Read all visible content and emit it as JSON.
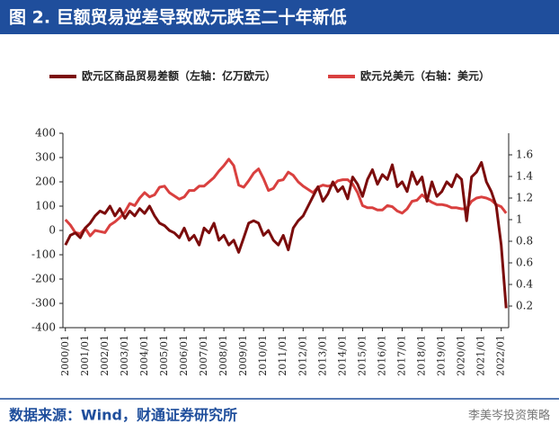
{
  "chart_data": {
    "type": "line",
    "title": "图 2. 巨额贸易逆差导致欧元跌至二十年新低",
    "source": "数据来源：Wind，财通证券研究所",
    "watermark": "李美岑投资策略",
    "categories": [
      "2000/01",
      null,
      null,
      null,
      "2001/01",
      null,
      null,
      null,
      "2002/01",
      null,
      null,
      null,
      "2003/01",
      null,
      null,
      null,
      "2004/01",
      null,
      null,
      null,
      "2005/01",
      null,
      null,
      null,
      "2006/01",
      null,
      null,
      null,
      "2007/01",
      null,
      null,
      null,
      "2008/01",
      null,
      null,
      null,
      "2009/01",
      null,
      null,
      null,
      "2010/01",
      null,
      null,
      null,
      "2011/01",
      null,
      null,
      null,
      "2012/01",
      null,
      null,
      null,
      "2013/01",
      null,
      null,
      null,
      "2014/01",
      null,
      null,
      null,
      "2015/01",
      null,
      null,
      null,
      "2016/01",
      null,
      null,
      null,
      "2017/01",
      null,
      null,
      null,
      "2018/01",
      null,
      null,
      null,
      "2019/01",
      null,
      null,
      null,
      "2020/01",
      null,
      null,
      null,
      "2021/01",
      null,
      null,
      null,
      "2022/01",
      null
    ],
    "series": [
      {
        "name": "欧元区商品贸易差额（左轴：亿万欧元）",
        "color": "#7b0c0c",
        "values": [
          -60,
          -20,
          -10,
          -30,
          10,
          30,
          60,
          80,
          70,
          100,
          60,
          90,
          50,
          80,
          60,
          90,
          70,
          100,
          60,
          30,
          20,
          0,
          -10,
          -30,
          10,
          -40,
          -20,
          -60,
          10,
          -10,
          30,
          -40,
          -20,
          -60,
          -40,
          -90,
          -30,
          30,
          40,
          30,
          -20,
          0,
          -40,
          -60,
          -20,
          -80,
          10,
          40,
          60,
          100,
          140,
          180,
          120,
          150,
          200,
          160,
          180,
          130,
          220,
          190,
          140,
          210,
          250,
          190,
          230,
          210,
          270,
          180,
          200,
          160,
          240,
          190,
          220,
          120,
          200,
          140,
          160,
          200,
          180,
          230,
          210,
          40,
          220,
          240,
          280,
          200,
          160,
          100,
          -60,
          -320
        ]
      },
      {
        "name": "欧元兑美元（右轴：美元）",
        "color": "#d9403f",
        "axis": "y2",
        "values": [
          1.0,
          0.95,
          0.88,
          0.87,
          0.92,
          0.85,
          0.9,
          0.89,
          0.88,
          0.95,
          0.98,
          1.02,
          1.07,
          1.15,
          1.13,
          1.2,
          1.25,
          1.21,
          1.23,
          1.3,
          1.31,
          1.25,
          1.22,
          1.19,
          1.21,
          1.27,
          1.27,
          1.31,
          1.31,
          1.35,
          1.39,
          1.45,
          1.5,
          1.56,
          1.5,
          1.32,
          1.3,
          1.36,
          1.43,
          1.47,
          1.38,
          1.27,
          1.29,
          1.36,
          1.37,
          1.44,
          1.41,
          1.35,
          1.31,
          1.28,
          1.25,
          1.3,
          1.32,
          1.31,
          1.32,
          1.36,
          1.37,
          1.37,
          1.33,
          1.25,
          1.13,
          1.11,
          1.11,
          1.09,
          1.09,
          1.13,
          1.12,
          1.08,
          1.06,
          1.1,
          1.17,
          1.18,
          1.23,
          1.19,
          1.16,
          1.14,
          1.14,
          1.13,
          1.11,
          1.11,
          1.1,
          1.1,
          1.17,
          1.2,
          1.21,
          1.2,
          1.18,
          1.14,
          1.12,
          1.06
        ]
      }
    ],
    "ylim": [
      -400,
      400
    ],
    "yticks": [
      -400,
      -300,
      -200,
      -100,
      0,
      100,
      200,
      300,
      400
    ],
    "y2lim": [
      0,
      1.8
    ],
    "y2ticks": [
      0.2,
      0.4,
      0.6,
      0.8,
      1,
      1.2,
      1.4,
      1.6
    ]
  }
}
